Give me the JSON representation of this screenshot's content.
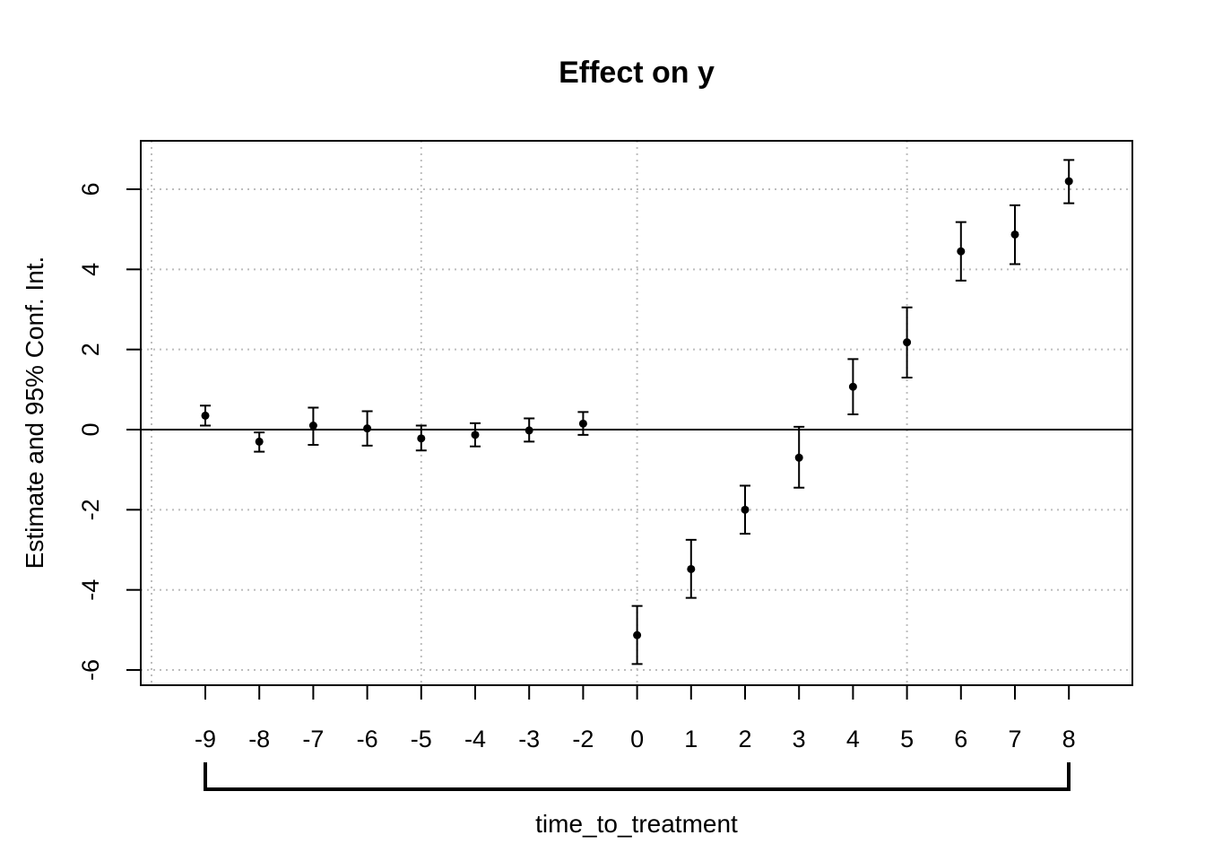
{
  "chart_data": {
    "type": "scatter",
    "title": "Effect on y",
    "xlabel": "time_to_treatment",
    "ylabel": "Estimate and 95% Conf. Int.",
    "x_tick_labels": [
      "-9",
      "-8",
      "-7",
      "-6",
      "-5",
      "-4",
      "-3",
      "-2",
      "0",
      "1",
      "2",
      "3",
      "4",
      "5",
      "6",
      "7",
      "8"
    ],
    "y_ticks": [
      -6,
      -4,
      -2,
      0,
      2,
      4,
      6
    ],
    "ylim": [
      -6.35,
      7.2
    ],
    "grid": true,
    "reference_line": 0,
    "estimates": [
      0.35,
      -0.3,
      0.1,
      0.03,
      -0.22,
      -0.13,
      -0.02,
      0.15,
      -5.13,
      -3.48,
      -2.0,
      -0.7,
      1.07,
      2.18,
      4.45,
      4.87,
      6.2
    ],
    "ci_low": [
      0.1,
      -0.55,
      -0.38,
      -0.4,
      -0.52,
      -0.42,
      -0.3,
      -0.13,
      -5.85,
      -4.2,
      -2.6,
      -1.45,
      0.38,
      1.3,
      3.72,
      4.13,
      5.65
    ],
    "ci_high": [
      0.6,
      -0.07,
      0.55,
      0.46,
      0.1,
      0.16,
      0.28,
      0.44,
      -4.4,
      -2.75,
      -1.4,
      0.07,
      1.76,
      3.05,
      5.18,
      5.6,
      6.73
    ]
  }
}
